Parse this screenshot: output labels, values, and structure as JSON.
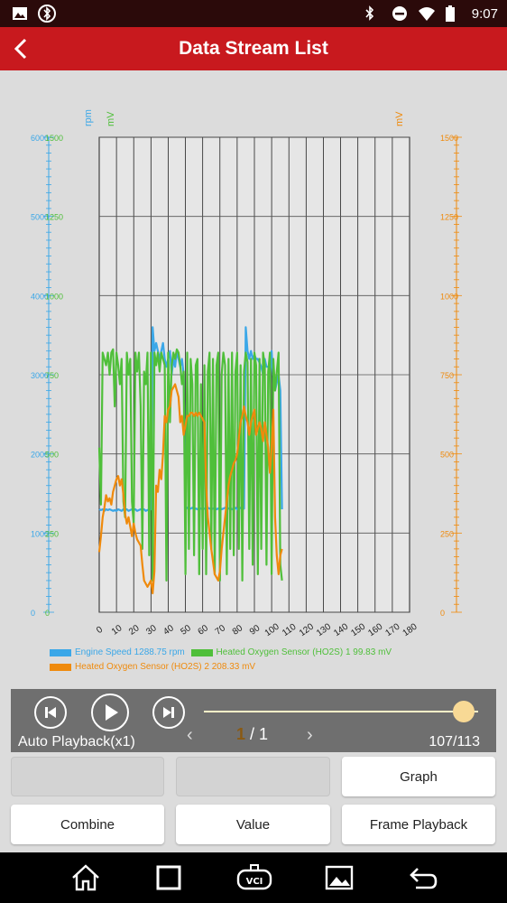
{
  "status_bar": {
    "time": "9:07",
    "left_icons": [
      "image-icon",
      "bluetooth-badge-icon"
    ],
    "right_icons": [
      "bluetooth-icon",
      "do-not-disturb-icon",
      "wifi-icon",
      "battery-icon"
    ]
  },
  "header": {
    "title": "Data Stream List",
    "back_icon": "back-arrow-icon"
  },
  "chart_data": {
    "type": "line",
    "x": [
      0,
      1,
      2,
      3,
      4,
      5,
      6,
      7,
      8,
      9,
      10,
      11,
      12,
      13,
      14,
      15,
      16,
      17,
      18,
      19,
      20,
      21,
      22,
      23,
      24,
      25,
      26,
      27,
      28,
      29,
      30,
      31,
      32,
      33,
      34,
      35,
      36,
      37,
      38,
      39,
      40,
      41,
      42,
      43,
      44,
      45,
      46,
      47,
      48,
      49,
      50,
      51,
      52,
      53,
      54,
      55,
      56,
      57,
      58,
      59,
      60,
      61,
      62,
      63,
      64,
      65,
      66,
      67,
      68,
      69,
      70,
      71,
      72,
      73,
      74,
      75,
      76,
      77,
      78,
      79,
      80,
      81,
      82,
      83,
      84,
      85,
      86,
      87,
      88,
      89,
      90,
      91,
      92,
      93,
      94,
      95,
      96,
      97,
      98,
      99,
      100,
      101,
      102,
      103,
      104,
      105,
      106
    ],
    "xlim": [
      0,
      180
    ],
    "x_ticks": [
      "0",
      "10",
      "20",
      "30",
      "40",
      "50",
      "60",
      "70",
      "80",
      "90",
      "100",
      "110",
      "120",
      "130",
      "140",
      "150",
      "160",
      "170",
      "180"
    ],
    "axes": {
      "left_rpm": {
        "unit": "rpm",
        "color": "#3aa7e8",
        "range": [
          0,
          6000
        ],
        "ticks": [
          "0",
          "1000",
          "2000",
          "3000",
          "4000",
          "5000",
          "6000"
        ]
      },
      "left_mv": {
        "unit": "mV",
        "color": "#4fbf3a",
        "range": [
          0,
          1500
        ],
        "ticks": [
          "0",
          "250",
          "500",
          "750",
          "1000",
          "1250",
          "1500"
        ]
      },
      "right_mv": {
        "unit": "mV",
        "color": "#ef8a0c",
        "range": [
          0,
          1500
        ],
        "ticks": [
          "0",
          "250",
          "500",
          "750",
          "1000",
          "1250",
          "1500"
        ]
      }
    },
    "series": [
      {
        "name": "Engine Speed",
        "current": "1288.75 rpm",
        "color": "#3aa7e8",
        "axis": "left_rpm",
        "values": [
          1300,
          1290,
          1300,
          1280,
          1300,
          1290,
          1300,
          1290,
          1280,
          1290,
          1280,
          1300,
          1290,
          1280,
          1300,
          1290,
          1300,
          1280,
          1290,
          1300,
          1290,
          1300,
          1280,
          1290,
          1300,
          1290,
          1300,
          1280,
          1290,
          1300,
          1300,
          3600,
          3300,
          3400,
          3300,
          3200,
          3300,
          3400,
          3200,
          3100,
          3200,
          3300,
          3000,
          3200,
          3100,
          3300,
          3200,
          3100,
          3200,
          3000,
          1330,
          1320,
          1300,
          1310,
          1320,
          1300,
          1310,
          1300,
          1320,
          1310,
          1300,
          1310,
          1300,
          1320,
          1310,
          1300,
          1310,
          1320,
          1300,
          1310,
          1320,
          1300,
          1310,
          1320,
          1300,
          1310,
          1320,
          1300,
          1310,
          1320,
          1300,
          1310,
          1320,
          1300,
          1310,
          3600,
          3300,
          3200,
          3300,
          3200,
          3250,
          3200,
          3200,
          3150,
          3100,
          3000,
          3200,
          3100,
          3100,
          3000,
          3300,
          2900,
          2800,
          2900,
          3000,
          2800,
          1300
        ]
      },
      {
        "name": "Heated Oxygen Sensor (HO2S) 1",
        "current": "99.83 mV",
        "color": "#4fbf3a",
        "axis": "left_mv",
        "values": [
          520,
          340,
          820,
          800,
          780,
          820,
          750,
          820,
          830,
          650,
          820,
          780,
          720,
          800,
          350,
          300,
          820,
          750,
          800,
          350,
          280,
          820,
          760,
          820,
          650,
          200,
          760,
          720,
          820,
          180,
          820,
          100,
          820,
          780,
          820,
          760,
          820,
          800,
          780,
          100,
          820,
          600,
          780,
          820,
          800,
          830,
          820,
          780,
          720,
          760,
          120,
          820,
          200,
          800,
          720,
          180,
          780,
          800,
          120,
          720,
          200,
          780,
          120,
          760,
          820,
          200,
          800,
          120,
          780,
          820,
          100,
          750,
          820,
          780,
          120,
          800,
          200,
          820,
          180,
          760,
          820,
          200,
          780,
          100,
          760,
          820,
          790,
          200,
          800,
          150,
          820,
          780,
          120,
          800,
          200,
          820,
          780,
          150,
          760,
          820,
          120,
          800,
          700,
          760,
          820,
          150,
          100
        ]
      },
      {
        "name": "Heated Oxygen Sensor (HO2S) 2",
        "current": "208.33 mV",
        "color": "#ef8a0c",
        "axis": "right_mv",
        "values": [
          190,
          240,
          300,
          330,
          370,
          350,
          360,
          340,
          380,
          400,
          420,
          430,
          400,
          420,
          370,
          310,
          280,
          300,
          270,
          240,
          280,
          250,
          230,
          220,
          210,
          150,
          100,
          90,
          80,
          90,
          100,
          60,
          130,
          400,
          380,
          450,
          420,
          500,
          620,
          600,
          640,
          650,
          700,
          710,
          720,
          700,
          680,
          600,
          620,
          560,
          590,
          620,
          620,
          630,
          630,
          620,
          630,
          620,
          630,
          620,
          610,
          600,
          400,
          300,
          250,
          200,
          160,
          120,
          110,
          100,
          130,
          200,
          250,
          300,
          350,
          400,
          430,
          450,
          470,
          480,
          500,
          550,
          600,
          620,
          650,
          620,
          600,
          560,
          600,
          620,
          640,
          560,
          580,
          600,
          580,
          540,
          600,
          560,
          520,
          440,
          520,
          640,
          300,
          180,
          120,
          180,
          200
        ]
      }
    ],
    "legend": [
      "Engine Speed 1288.75 rpm",
      "Heated Oxygen Sensor (HO2S) 1 99.83 mV",
      "Heated Oxygen Sensor (HO2S) 2 208.33 mV"
    ]
  },
  "player": {
    "mode_label": "Auto Playback(x1)",
    "frame_count": "107/113",
    "progress_fraction": 0.947,
    "page_current": "1",
    "page_sep": "/ 1",
    "prev_icon": "skip-previous-icon",
    "play_icon": "play-icon",
    "next_icon": "skip-next-icon"
  },
  "buttons": {
    "graph": "Graph",
    "combine": "Combine",
    "value": "Value",
    "frame_playback": "Frame Playback",
    "blank1": "",
    "blank2": ""
  },
  "nav": {
    "icons": [
      "home-icon",
      "recent-apps-icon",
      "vci-icon",
      "gallery-icon",
      "back-icon"
    ]
  }
}
